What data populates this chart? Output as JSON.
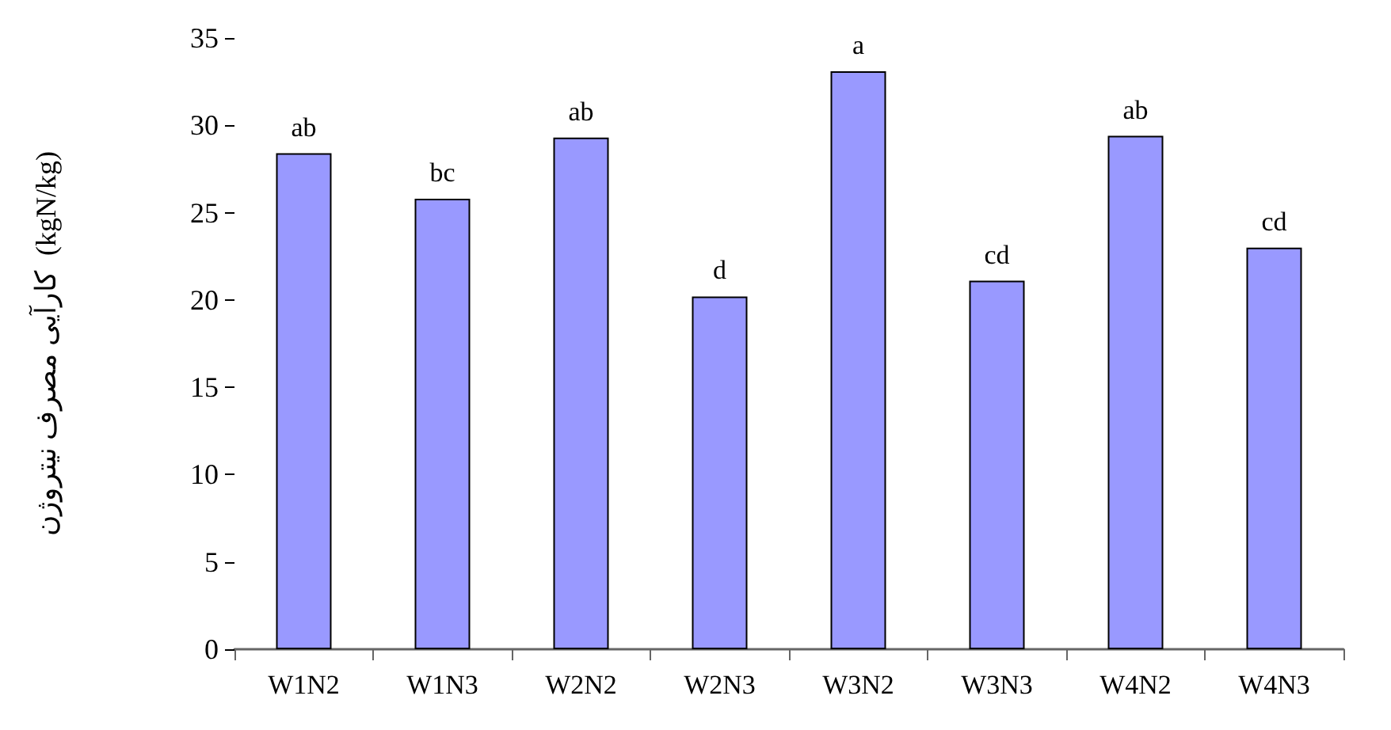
{
  "chart_data": {
    "type": "bar",
    "ylabel": "کارآیی مصرف نیتروژن  (kgN/kg)",
    "categories": [
      "W1N2",
      "W1N3",
      "W2N2",
      "W2N3",
      "W3N2",
      "W3N3",
      "W4N2",
      "W4N3"
    ],
    "values": [
      28.4,
      25.8,
      29.3,
      20.2,
      33.1,
      21.1,
      29.4,
      23.0
    ],
    "color": "#9999ff",
    "ylim": [
      0,
      35
    ],
    "yticks": [
      0,
      5,
      10,
      15,
      20,
      25,
      30,
      35
    ],
    "grid": false,
    "annotations": [
      {
        "text": "ab",
        "x": "W1N2",
        "y": 28.4
      },
      {
        "text": "bc",
        "x": "W1N3",
        "y": 25.8
      },
      {
        "text": "ab",
        "x": "W2N2",
        "y": 29.3
      },
      {
        "text": "d",
        "x": "W2N3",
        "y": 20.2
      },
      {
        "text": "a",
        "x": "W3N2",
        "y": 33.1
      },
      {
        "text": "cd",
        "x": "W3N3",
        "y": 21.1
      },
      {
        "text": "ab",
        "x": "W4N2",
        "y": 29.4
      },
      {
        "text": "cd",
        "x": "W4N3",
        "y": 23.0
      }
    ]
  }
}
